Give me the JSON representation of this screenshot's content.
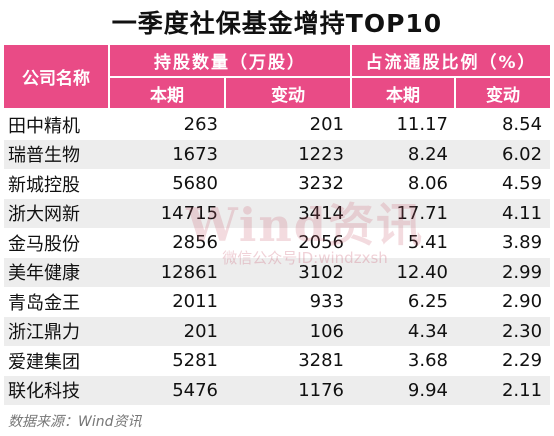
{
  "title": "一季度社保基金增持TOP10",
  "headers": {
    "company": "公司名称",
    "holdings_group": "持股数量（万股）",
    "ratio_group": "占流通股比例（%）",
    "current": "本期",
    "change": "变动"
  },
  "rows": [
    {
      "name": "田中精机",
      "hold_cur": "263",
      "hold_chg": "201",
      "ratio_cur": "11.17",
      "ratio_chg": "8.54"
    },
    {
      "name": "瑞普生物",
      "hold_cur": "1673",
      "hold_chg": "1223",
      "ratio_cur": "8.24",
      "ratio_chg": "6.02"
    },
    {
      "name": "新城控股",
      "hold_cur": "5680",
      "hold_chg": "3232",
      "ratio_cur": "8.06",
      "ratio_chg": "4.59"
    },
    {
      "name": "浙大网新",
      "hold_cur": "14715",
      "hold_chg": "3414",
      "ratio_cur": "17.71",
      "ratio_chg": "4.11"
    },
    {
      "name": "金马股份",
      "hold_cur": "2856",
      "hold_chg": "2056",
      "ratio_cur": "5.41",
      "ratio_chg": "3.89"
    },
    {
      "name": "美年健康",
      "hold_cur": "12861",
      "hold_chg": "3102",
      "ratio_cur": "12.40",
      "ratio_chg": "2.99"
    },
    {
      "name": "青岛金王",
      "hold_cur": "2011",
      "hold_chg": "933",
      "ratio_cur": "6.25",
      "ratio_chg": "2.90"
    },
    {
      "name": "浙江鼎力",
      "hold_cur": "201",
      "hold_chg": "106",
      "ratio_cur": "4.34",
      "ratio_chg": "2.30"
    },
    {
      "name": "爱建集团",
      "hold_cur": "5281",
      "hold_chg": "3281",
      "ratio_cur": "3.68",
      "ratio_chg": "2.29"
    },
    {
      "name": "联化科技",
      "hold_cur": "5476",
      "hold_chg": "1176",
      "ratio_cur": "9.94",
      "ratio_chg": "2.11"
    }
  ],
  "watermark": {
    "main": "Wind资讯",
    "sub": "微信公众号ID:windzxsh"
  },
  "source": "数据来源：Wind资讯",
  "colors": {
    "header_bg": "#e94b86",
    "stripe": "#ededed"
  }
}
